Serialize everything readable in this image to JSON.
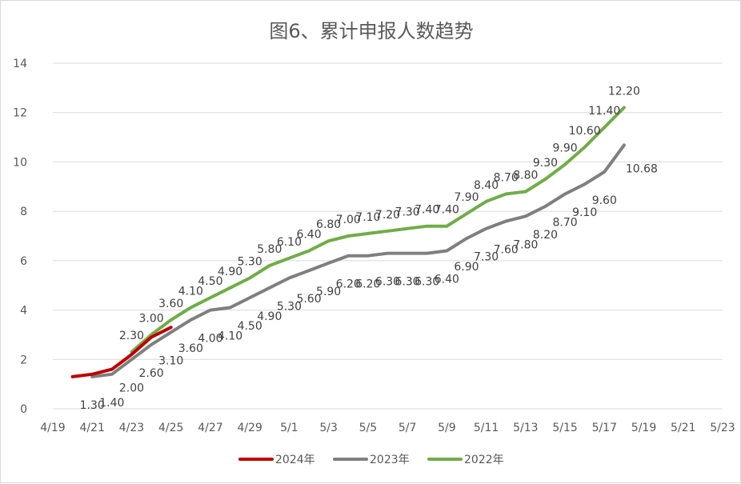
{
  "chart_data": {
    "type": "line",
    "title": "图6、累计申报人数趋势",
    "xlabel": "",
    "ylabel": "",
    "ylim": [
      0,
      14
    ],
    "yticks": [
      "0",
      "2",
      "4",
      "6",
      "8",
      "10",
      "12",
      "14"
    ],
    "x_ticks": [
      "4/19",
      "4/21",
      "4/23",
      "4/25",
      "4/27",
      "4/29",
      "5/1",
      "5/3",
      "5/5",
      "5/7",
      "5/9",
      "5/11",
      "5/13",
      "5/15",
      "5/17",
      "5/19",
      "5/21",
      "5/23"
    ],
    "x_categories": [
      "4/19",
      "4/20",
      "4/21",
      "4/22",
      "4/23",
      "4/24",
      "4/25",
      "4/26",
      "4/27",
      "4/28",
      "4/29",
      "4/30",
      "5/1",
      "5/2",
      "5/3",
      "5/4",
      "5/5",
      "5/6",
      "5/7",
      "5/8",
      "5/9",
      "5/10",
      "5/11",
      "5/12",
      "5/13",
      "5/14",
      "5/15",
      "5/16",
      "5/17",
      "5/18",
      "5/19",
      "5/20",
      "5/21",
      "5/22",
      "5/23"
    ],
    "grid": true,
    "legend_position": "bottom",
    "series": [
      {
        "name": "2024年",
        "color": "#c00000",
        "x": [
          "4/20",
          "4/21",
          "4/22",
          "4/23",
          "4/24",
          "4/25"
        ],
        "values": [
          1.3,
          1.4,
          1.6,
          2.2,
          2.9,
          3.3
        ],
        "labels": []
      },
      {
        "name": "2023年",
        "color": "#7f7f7f",
        "x": [
          "4/21",
          "4/22",
          "4/23",
          "4/24",
          "4/25",
          "4/26",
          "4/27",
          "4/28",
          "4/29",
          "4/30",
          "5/1",
          "5/2",
          "5/3",
          "5/4",
          "5/5",
          "5/6",
          "5/7",
          "5/8",
          "5/9",
          "5/10",
          "5/11",
          "5/12",
          "5/13",
          "5/14",
          "5/15",
          "5/16",
          "5/17",
          "5/18"
        ],
        "values": [
          1.3,
          1.4,
          2.0,
          2.6,
          3.1,
          3.6,
          4.0,
          4.1,
          4.5,
          4.9,
          5.3,
          5.6,
          5.9,
          6.2,
          6.2,
          6.3,
          6.3,
          6.3,
          6.4,
          6.9,
          7.3,
          7.6,
          7.8,
          8.2,
          8.7,
          9.1,
          9.6,
          10.68
        ],
        "labels": [
          "1.30",
          "1.40",
          "2.00",
          "2.60",
          "3.10",
          "3.60",
          "4.00",
          "4.10",
          "4.50",
          "4.90",
          "5.30",
          "5.60",
          "5.90",
          "6.20",
          "6.20",
          "6.30",
          "6.30",
          "6.30",
          "6.40",
          "6.90",
          "7.30",
          "7.60",
          "7.80",
          "8.20",
          "8.70",
          "9.10",
          "9.60",
          "10.68"
        ]
      },
      {
        "name": "2022年",
        "color": "#70ad47",
        "x": [
          "4/23",
          "4/24",
          "4/25",
          "4/26",
          "4/27",
          "4/28",
          "4/29",
          "4/30",
          "5/1",
          "5/2",
          "5/3",
          "5/4",
          "5/5",
          "5/6",
          "5/7",
          "5/8",
          "5/9",
          "5/10",
          "5/11",
          "5/12",
          "5/13",
          "5/14",
          "5/15",
          "5/16",
          "5/17",
          "5/18"
        ],
        "values": [
          2.3,
          3.0,
          3.6,
          4.1,
          4.5,
          4.9,
          5.3,
          5.8,
          6.1,
          6.4,
          6.8,
          7.0,
          7.1,
          7.2,
          7.3,
          7.4,
          7.4,
          7.9,
          8.4,
          8.7,
          8.8,
          9.3,
          9.9,
          10.6,
          11.4,
          12.2
        ],
        "labels": [
          "2.30",
          "3.00",
          "3.60",
          "4.10",
          "4.50",
          "4.90",
          "5.30",
          "5.80",
          "6.10",
          "6.40",
          "6.80",
          "7.00",
          "7.10",
          "7.20",
          "7.30",
          "7.40",
          "7.40",
          "7.90",
          "8.40",
          "8.70",
          "8.80",
          "9.30",
          "9.90",
          "10.60",
          "11.40",
          "12.20"
        ]
      }
    ]
  }
}
